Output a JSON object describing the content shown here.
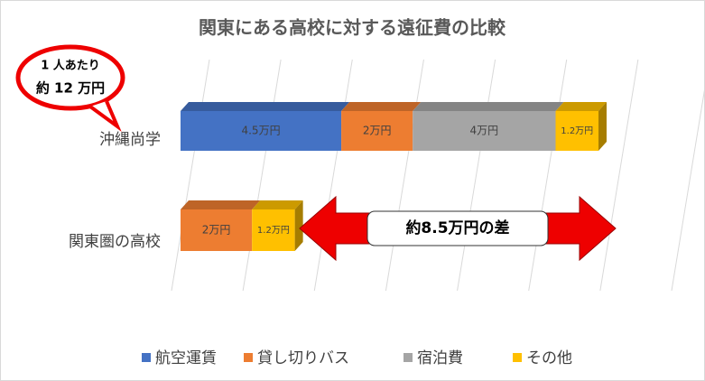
{
  "chart_data": {
    "type": "bar3d-horizontal-stacked",
    "title": "関東にある高校に対する遠征費の比較",
    "categories": [
      "沖縄尚学",
      "関東圏の高校"
    ],
    "series": [
      {
        "name": "航空運賃",
        "color": "#4472c4",
        "values": [
          4.5,
          null
        ],
        "value_labels": [
          "4.5万円",
          null
        ]
      },
      {
        "name": "貸し切りバス",
        "color": "#ed7d31",
        "values": [
          2,
          2
        ],
        "value_labels": [
          "2万円",
          "2万円"
        ]
      },
      {
        "name": "宿泊費",
        "color": "#a5a5a5",
        "values": [
          4,
          null
        ],
        "value_labels": [
          "4万円",
          null
        ]
      },
      {
        "name": "その他",
        "color": "#ffc000",
        "values": [
          1.2,
          1.2
        ],
        "value_labels": [
          "1.2万円",
          "1.2万円"
        ]
      }
    ],
    "xlim": [
      0,
      14
    ],
    "xticks": [
      0,
      2,
      4,
      6,
      8,
      10,
      12,
      14
    ],
    "grid": true,
    "annotations": {
      "callout_line1": "1 人あたり",
      "callout_line2": "約 12 万円",
      "difference": "約8.5万円の差"
    }
  }
}
